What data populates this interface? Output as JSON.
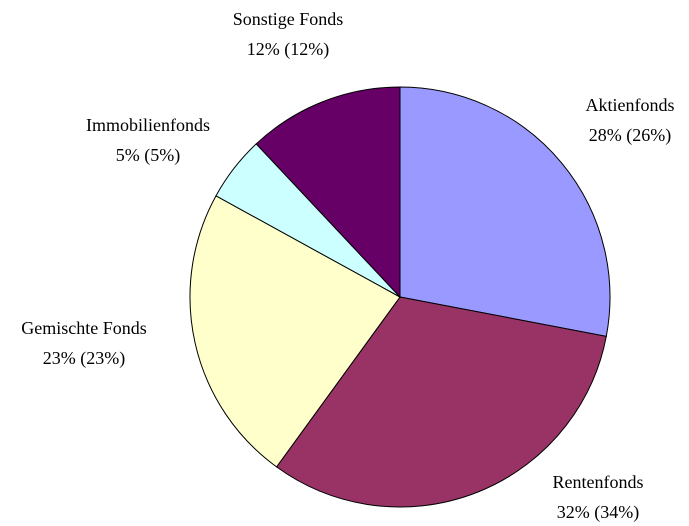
{
  "chart_data": {
    "type": "pie",
    "categories": [
      "Aktienfonds",
      "Rentenfonds",
      "Gemischte Fonds",
      "Immobilienfonds",
      "Sonstige Fonds"
    ],
    "values": [
      28,
      32,
      23,
      5,
      12
    ],
    "value_labels": [
      "28% (26%)",
      "32% (34%)",
      "23% (23%)",
      "5% (5%)",
      "12% (12%)"
    ],
    "colors": [
      "#9999ff",
      "#993366",
      "#ffffcc",
      "#ccffff",
      "#660066"
    ]
  }
}
